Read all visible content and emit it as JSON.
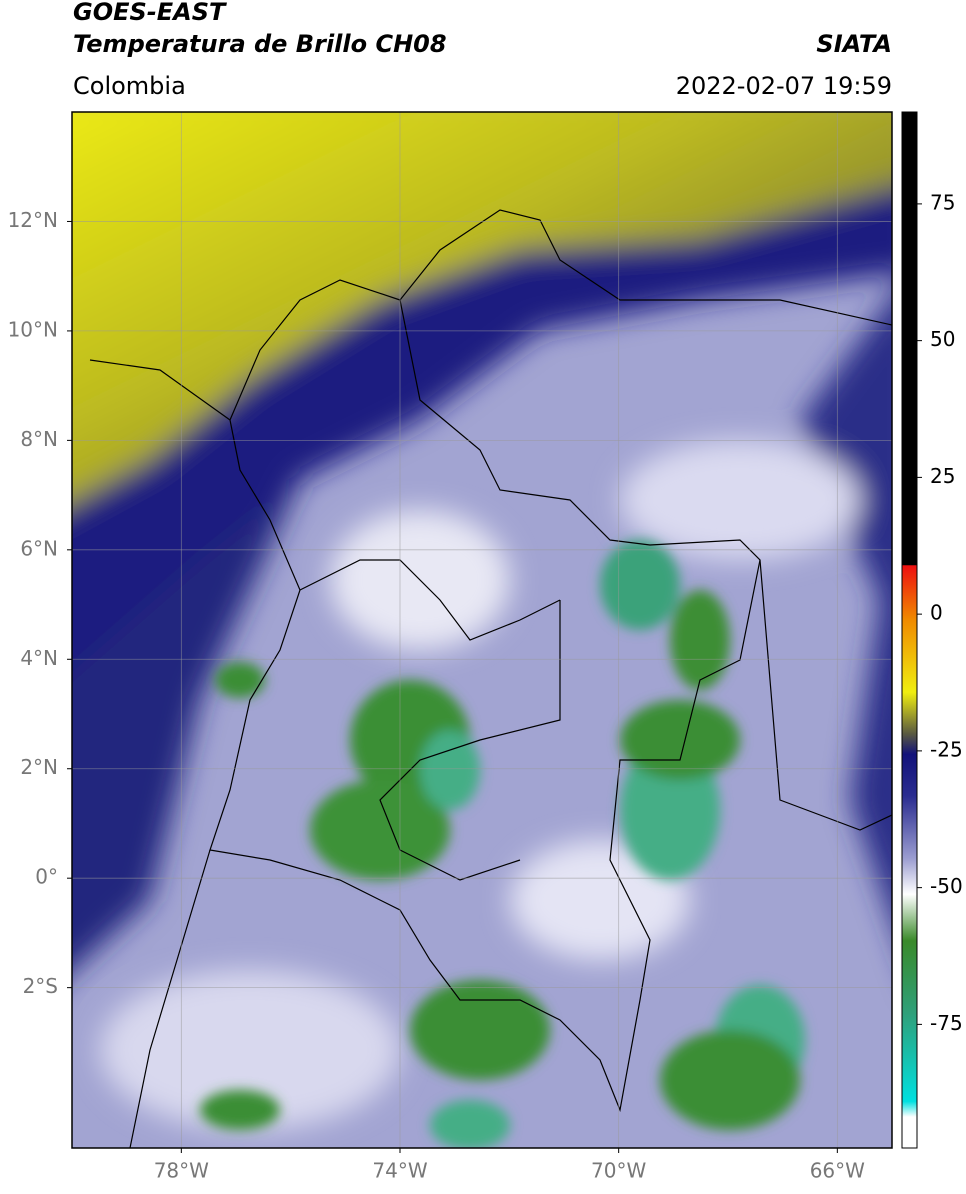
{
  "header": {
    "title": "GOES-EAST",
    "subtitle": "Temperatura de Brillo CH08",
    "source": "SIATA",
    "region": "Colombia",
    "datetime": "2022-02-07 19:59"
  },
  "map": {
    "lonlim": [
      -80,
      -65
    ],
    "latlim": [
      -4.93,
      14
    ],
    "lon_ticks": [
      {
        "value": -78,
        "label": "78°W"
      },
      {
        "value": -74,
        "label": "74°W"
      },
      {
        "value": -70,
        "label": "70°W"
      },
      {
        "value": -66,
        "label": "66°W"
      }
    ],
    "lat_ticks": [
      {
        "value": 12,
        "label": "12°N"
      },
      {
        "value": 10,
        "label": "10°N"
      },
      {
        "value": 8,
        "label": "8°N"
      },
      {
        "value": 6,
        "label": "6°N"
      },
      {
        "value": 4,
        "label": "4°N"
      },
      {
        "value": 2,
        "label": "2°N"
      },
      {
        "value": 0,
        "label": "0°"
      },
      {
        "value": -2,
        "label": "2°S"
      }
    ]
  },
  "colorbar": {
    "lim": [
      -97.6,
      91.8
    ],
    "ticks": [
      75,
      50,
      25,
      0,
      -25,
      -50,
      -75
    ]
  }
}
